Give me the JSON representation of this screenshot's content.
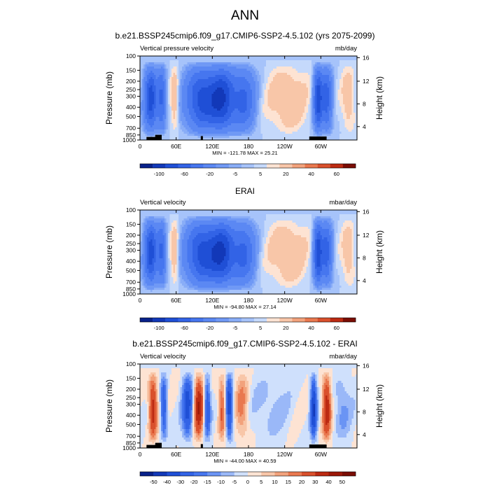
{
  "figure_title": "ANN",
  "chart_data": [
    {
      "type": "heatmap",
      "title": "b.e21.BSSP245cmip6.f09_g17.CMIP6-SSP2-4.5.102 (yrs 2075-2099)",
      "left_label": "Vertical pressure velocity",
      "unit": "mb/day",
      "ylabel": "Pressure (mb)",
      "ylabel_right": "Height (km)",
      "x_ticks": [
        "0",
        "60E",
        "120E",
        "180",
        "120W",
        "60W"
      ],
      "y_ticks": [
        "100",
        "150",
        "200",
        "250",
        "300",
        "400",
        "500",
        "700",
        "850",
        "1000"
      ],
      "y_right_ticks": [
        "16",
        "12",
        "8",
        "4"
      ],
      "stats": "MIN = -121.78  MAX = 25.21",
      "colorbar_ticks": [
        "-100",
        "-60",
        "-20",
        "-5",
        "5",
        "20",
        "40",
        "60"
      ],
      "levels": [
        -120,
        -100,
        -80,
        -60,
        -40,
        -20,
        -10,
        -5,
        0,
        5,
        10,
        20,
        30,
        40,
        50,
        60
      ],
      "min": -121.78,
      "max": 25.21,
      "colors": [
        "#08218a",
        "#1238b8",
        "#1f4fd6",
        "#3263e6",
        "#4676ef",
        "#5b88f3",
        "#7099f5",
        "#89adf7",
        "#a6c3fa",
        "#c5d9fb",
        "#fde3d3",
        "#f8c6a8",
        "#f2a27c",
        "#e9784f",
        "#d9502c",
        "#bc2a12",
        "#7a0d04"
      ],
      "seed": 3,
      "zero_level": 0,
      "terrain": true
    },
    {
      "type": "heatmap",
      "title": "ERAI",
      "left_label": "Vertical velocity",
      "unit": "mbar/day",
      "ylabel": "Pressure (mb)",
      "ylabel_right": "Height (km)",
      "x_ticks": [
        "0",
        "60E",
        "120E",
        "180",
        "120W",
        "60W"
      ],
      "y_ticks": [
        "100",
        "150",
        "200",
        "250",
        "300",
        "400",
        "500",
        "700",
        "850",
        "1000"
      ],
      "y_right_ticks": [
        "16",
        "12",
        "8",
        "4"
      ],
      "stats": "MIN = -94.80  MAX = 27.14",
      "colorbar_ticks": [
        "-100",
        "-60",
        "-20",
        "-5",
        "5",
        "20",
        "40",
        "60"
      ],
      "levels": [
        -120,
        -100,
        -80,
        -60,
        -40,
        -20,
        -10,
        -5,
        0,
        5,
        10,
        20,
        30,
        40,
        50,
        60
      ],
      "min": -94.8,
      "max": 27.14,
      "colors": [
        "#08218a",
        "#1238b8",
        "#1f4fd6",
        "#3263e6",
        "#4676ef",
        "#5b88f3",
        "#7099f5",
        "#89adf7",
        "#a6c3fa",
        "#c5d9fb",
        "#fde3d3",
        "#f8c6a8",
        "#f2a27c",
        "#e9784f",
        "#d9502c",
        "#bc2a12",
        "#7a0d04"
      ],
      "seed": 7,
      "zero_level": 0,
      "terrain": false
    },
    {
      "type": "heatmap",
      "title": "b.e21.BSSP245cmip6.f09_g17.CMIP6-SSP2-4.5.102 - ERAI",
      "left_label": "Vertical velocity",
      "unit": "mbar/day",
      "ylabel": "Pressure (mb)",
      "ylabel_right": "Height (km)",
      "x_ticks": [
        "0",
        "60E",
        "120E",
        "180",
        "120W",
        "60W"
      ],
      "y_ticks": [
        "100",
        "150",
        "200",
        "250",
        "300",
        "400",
        "500",
        "700",
        "850",
        "1000"
      ],
      "y_right_ticks": [
        "16",
        "12",
        "8",
        "4"
      ],
      "stats": "MIN = -44.00  MAX = 40.59",
      "colorbar_ticks": [
        "-50",
        "-40",
        "-30",
        "-20",
        "-15",
        "-10",
        "-5",
        "0",
        "5",
        "10",
        "15",
        "20",
        "30",
        "40",
        "50"
      ],
      "levels": [
        -50,
        -40,
        -30,
        -20,
        -15,
        -10,
        -5,
        0,
        5,
        10,
        15,
        20,
        30,
        40,
        50
      ],
      "min": -44.0,
      "max": 40.59,
      "colors": [
        "#08218a",
        "#1238b8",
        "#1f4fd6",
        "#3263e6",
        "#4676ef",
        "#6a94f4",
        "#9ab8f8",
        "#cfe0fc",
        "#fde3d3",
        "#f8c6a8",
        "#f2a27c",
        "#e9784f",
        "#d9502c",
        "#bc2a12",
        "#9c1808",
        "#7a0d04"
      ],
      "seed": 11,
      "zero_level": 0,
      "terrain": true
    }
  ]
}
